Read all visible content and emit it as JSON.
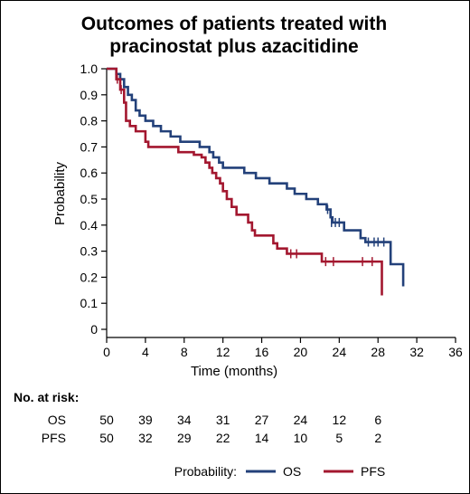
{
  "chart_data": {
    "type": "line",
    "subtype": "kaplan-meier",
    "title_lines": [
      "Outcomes of patients treated with",
      "pracinostat plus azacitidine"
    ],
    "xlabel": "Time (months)",
    "ylabel": "Probability",
    "xlim": [
      0,
      36
    ],
    "ylim": [
      0,
      1.0
    ],
    "x_ticks": [
      "0",
      "4",
      "8",
      "12",
      "16",
      "20",
      "24",
      "28",
      "32",
      "36"
    ],
    "y_ticks": [
      "0",
      "0.1",
      "0.2",
      "0.3",
      "0.4",
      "0.5",
      "0.6",
      "0.7",
      "0.8",
      "0.9",
      "1.0"
    ],
    "grid": false,
    "series": [
      {
        "name": "OS",
        "color": "#23417a",
        "steps": [
          [
            0,
            1.0
          ],
          [
            1.0,
            0.98
          ],
          [
            1.4,
            0.96
          ],
          [
            1.8,
            0.93
          ],
          [
            2.2,
            0.9
          ],
          [
            2.6,
            0.88
          ],
          [
            3.0,
            0.84
          ],
          [
            3.4,
            0.82
          ],
          [
            4.0,
            0.8
          ],
          [
            4.8,
            0.78
          ],
          [
            5.6,
            0.76
          ],
          [
            6.6,
            0.74
          ],
          [
            7.6,
            0.72
          ],
          [
            9.6,
            0.7
          ],
          [
            10.6,
            0.68
          ],
          [
            11.0,
            0.66
          ],
          [
            11.6,
            0.64
          ],
          [
            12.0,
            0.62
          ],
          [
            13.0,
            0.62
          ],
          [
            14.2,
            0.6
          ],
          [
            15.4,
            0.58
          ],
          [
            16.8,
            0.56
          ],
          [
            18.6,
            0.54
          ],
          [
            19.4,
            0.52
          ],
          [
            20.6,
            0.5
          ],
          [
            21.8,
            0.48
          ],
          [
            22.7,
            0.46
          ],
          [
            23.1,
            0.43
          ],
          [
            23.3,
            0.41
          ],
          [
            24.5,
            0.38
          ],
          [
            26.2,
            0.35
          ],
          [
            26.7,
            0.335
          ],
          [
            29.3,
            0.25
          ],
          [
            30.6,
            0.165
          ]
        ],
        "end_x": 30.6,
        "censors": [
          [
            22.8,
            0.46
          ],
          [
            23.2,
            0.41
          ],
          [
            23.6,
            0.41
          ],
          [
            24.0,
            0.41
          ],
          [
            27.0,
            0.335
          ],
          [
            27.6,
            0.335
          ],
          [
            28.0,
            0.335
          ],
          [
            28.6,
            0.335
          ]
        ]
      },
      {
        "name": "PFS",
        "color": "#a3172f",
        "steps": [
          [
            0,
            1.0
          ],
          [
            1.0,
            0.96
          ],
          [
            1.4,
            0.92
          ],
          [
            1.8,
            0.87
          ],
          [
            2.0,
            0.8
          ],
          [
            2.4,
            0.78
          ],
          [
            3.0,
            0.76
          ],
          [
            4.0,
            0.72
          ],
          [
            4.3,
            0.7
          ],
          [
            7.0,
            0.7
          ],
          [
            7.4,
            0.68
          ],
          [
            9.0,
            0.67
          ],
          [
            9.8,
            0.66
          ],
          [
            10.2,
            0.64
          ],
          [
            10.6,
            0.62
          ],
          [
            10.9,
            0.6
          ],
          [
            11.3,
            0.58
          ],
          [
            11.7,
            0.56
          ],
          [
            12.0,
            0.53
          ],
          [
            12.4,
            0.5
          ],
          [
            12.9,
            0.47
          ],
          [
            13.4,
            0.44
          ],
          [
            14.6,
            0.41
          ],
          [
            15.0,
            0.38
          ],
          [
            15.3,
            0.36
          ],
          [
            17.2,
            0.33
          ],
          [
            17.6,
            0.31
          ],
          [
            18.6,
            0.29
          ],
          [
            22.2,
            0.26
          ],
          [
            28.4,
            0.13
          ]
        ],
        "end_x": 28.4,
        "censors": [
          [
            1.1,
            0.96
          ],
          [
            1.5,
            0.92
          ],
          [
            19.0,
            0.29
          ],
          [
            19.6,
            0.29
          ],
          [
            22.6,
            0.26
          ],
          [
            23.4,
            0.26
          ],
          [
            26.4,
            0.26
          ],
          [
            27.4,
            0.26
          ]
        ]
      }
    ],
    "at_risk": {
      "header": "No. at risk:",
      "rows": [
        {
          "label": "OS",
          "values": [
            "50",
            "39",
            "34",
            "31",
            "27",
            "24",
            "12",
            "6"
          ]
        },
        {
          "label": "PFS",
          "values": [
            "50",
            "32",
            "29",
            "22",
            "14",
            "10",
            "5",
            "2"
          ]
        }
      ]
    },
    "legend": {
      "title": "Probability:",
      "placement": "bottom",
      "items": [
        {
          "label": "OS",
          "color": "#23417a"
        },
        {
          "label": "PFS",
          "color": "#a3172f"
        }
      ]
    }
  }
}
